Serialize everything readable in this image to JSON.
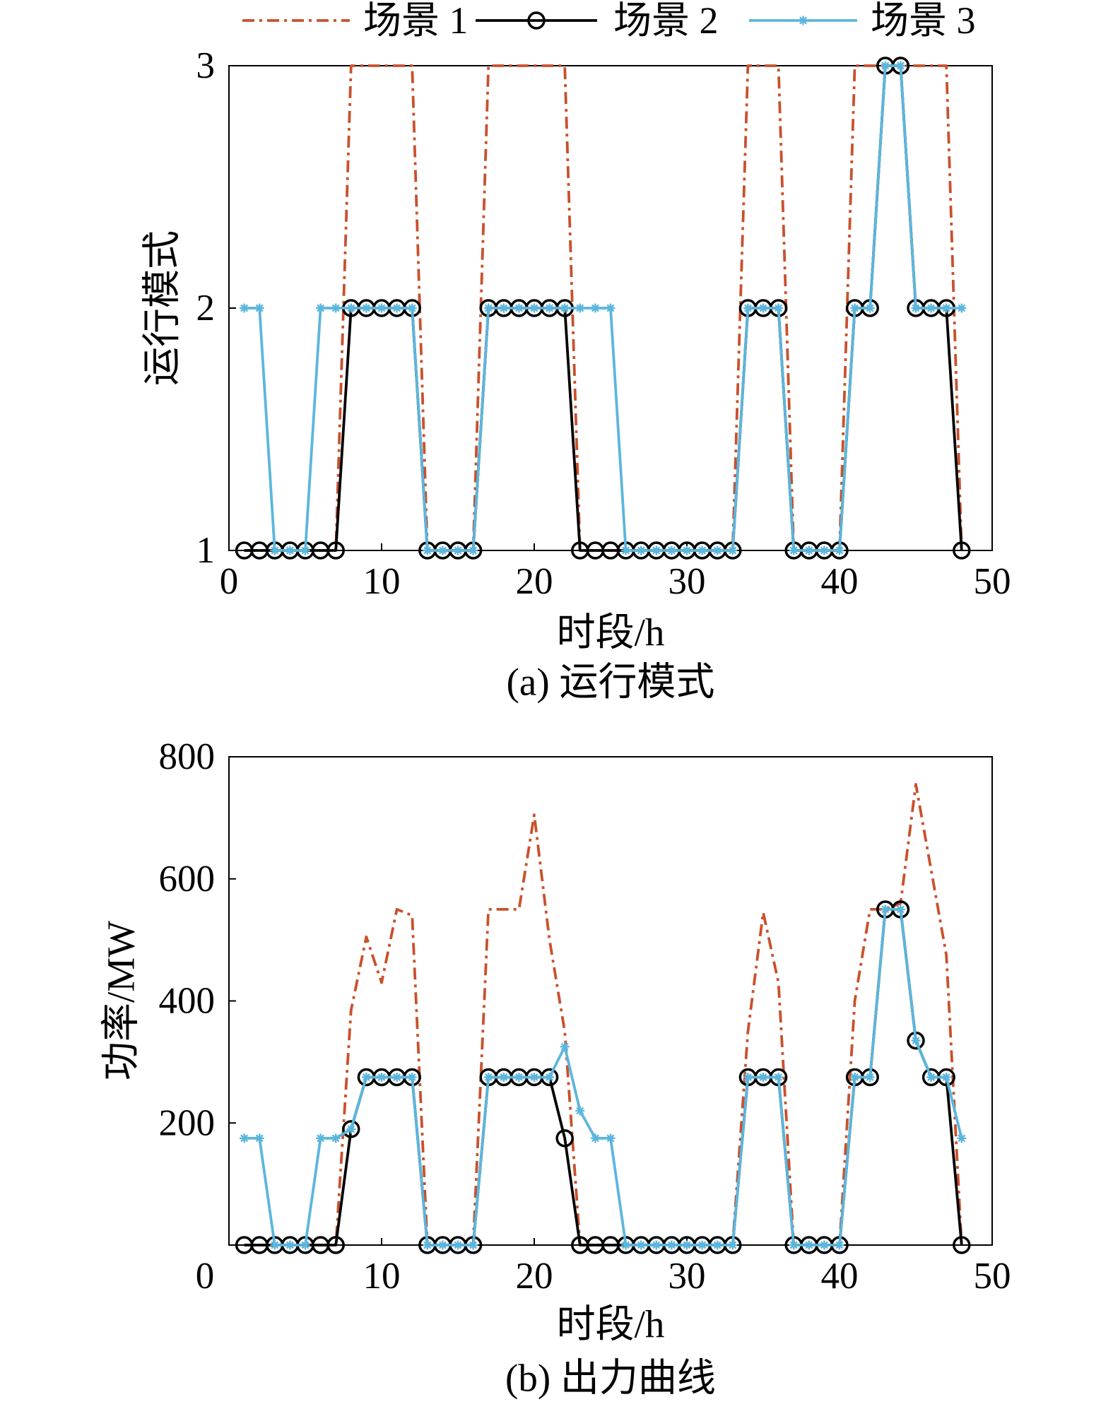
{
  "legend": {
    "position": "top",
    "items": [
      {
        "label": "场景 1",
        "color": "#c9512c",
        "line_style": "dash-dot"
      },
      {
        "label": "场景 2",
        "color": "#000000",
        "line_style": "solid",
        "marker": "circle"
      },
      {
        "label": "场景 3",
        "color": "#5cb6dc",
        "line_style": "solid",
        "marker": "asterisk"
      }
    ]
  },
  "chart_data": [
    {
      "type": "line",
      "caption": "(a) 运行模式",
      "xlabel": "时段/h",
      "ylabel": "运行模式",
      "xlim": [
        0,
        50
      ],
      "ylim": [
        1,
        3
      ],
      "xticks": [
        0,
        10,
        20,
        30,
        40,
        50
      ],
      "yticks": [
        1,
        2,
        3
      ],
      "grid": false,
      "x": [
        1,
        2,
        3,
        4,
        5,
        6,
        7,
        8,
        9,
        10,
        11,
        12,
        13,
        14,
        15,
        16,
        17,
        18,
        19,
        20,
        21,
        22,
        23,
        24,
        25,
        26,
        27,
        28,
        29,
        30,
        31,
        32,
        33,
        34,
        35,
        36,
        37,
        38,
        39,
        40,
        41,
        42,
        43,
        44,
        45,
        46,
        47,
        48
      ],
      "series": [
        {
          "name": "场景 1",
          "values": [
            1,
            1,
            1,
            1,
            1,
            1,
            1,
            3,
            3,
            3,
            3,
            3,
            1,
            1,
            1,
            1,
            3,
            3,
            3,
            3,
            3,
            3,
            1,
            1,
            1,
            1,
            1,
            1,
            1,
            1,
            1,
            1,
            1,
            3,
            3,
            3,
            1,
            1,
            1,
            1,
            3,
            3,
            3,
            3,
            3,
            3,
            3,
            1
          ]
        },
        {
          "name": "场景 2",
          "values": [
            1,
            1,
            1,
            1,
            1,
            1,
            1,
            2,
            2,
            2,
            2,
            2,
            1,
            1,
            1,
            1,
            2,
            2,
            2,
            2,
            2,
            2,
            1,
            1,
            1,
            1,
            1,
            1,
            1,
            1,
            1,
            1,
            1,
            2,
            2,
            2,
            1,
            1,
            1,
            1,
            2,
            2,
            3,
            3,
            2,
            2,
            2,
            1
          ]
        },
        {
          "name": "场景 3",
          "values": [
            2,
            2,
            1,
            1,
            1,
            2,
            2,
            2,
            2,
            2,
            2,
            2,
            1,
            1,
            1,
            1,
            2,
            2,
            2,
            2,
            2,
            2,
            2,
            2,
            2,
            1,
            1,
            1,
            1,
            1,
            1,
            1,
            1,
            2,
            2,
            2,
            1,
            1,
            1,
            1,
            2,
            2,
            3,
            3,
            2,
            2,
            2,
            2
          ]
        }
      ]
    },
    {
      "type": "line",
      "caption": "(b) 出力曲线",
      "xlabel": "时段/h",
      "ylabel": "功率/MW",
      "xlim": [
        0,
        50
      ],
      "ylim": [
        0,
        800
      ],
      "xticks": [
        0,
        10,
        20,
        30,
        40,
        50
      ],
      "yticks": [
        200,
        400,
        600,
        800
      ],
      "grid": false,
      "x": [
        1,
        2,
        3,
        4,
        5,
        6,
        7,
        8,
        9,
        10,
        11,
        12,
        13,
        14,
        15,
        16,
        17,
        18,
        19,
        20,
        21,
        22,
        23,
        24,
        25,
        26,
        27,
        28,
        29,
        30,
        31,
        32,
        33,
        34,
        35,
        36,
        37,
        38,
        39,
        40,
        41,
        42,
        43,
        44,
        45,
        46,
        47,
        48
      ],
      "series": [
        {
          "name": "场景 1",
          "values": [
            0,
            0,
            0,
            0,
            0,
            0,
            0,
            385,
            505,
            430,
            550,
            540,
            0,
            0,
            0,
            0,
            550,
            550,
            550,
            705,
            500,
            350,
            0,
            0,
            0,
            0,
            0,
            0,
            0,
            0,
            0,
            0,
            0,
            350,
            545,
            430,
            0,
            0,
            0,
            0,
            400,
            550,
            550,
            560,
            755,
            615,
            475,
            0
          ]
        },
        {
          "name": "场景 2",
          "values": [
            0,
            0,
            0,
            0,
            0,
            0,
            0,
            190,
            275,
            275,
            275,
            275,
            0,
            0,
            0,
            0,
            275,
            275,
            275,
            275,
            275,
            175,
            0,
            0,
            0,
            0,
            0,
            0,
            0,
            0,
            0,
            0,
            0,
            275,
            275,
            275,
            0,
            0,
            0,
            0,
            275,
            275,
            550,
            550,
            335,
            275,
            275,
            0
          ]
        },
        {
          "name": "场景 3",
          "values": [
            175,
            175,
            0,
            0,
            0,
            175,
            175,
            190,
            275,
            275,
            275,
            275,
            0,
            0,
            0,
            0,
            275,
            275,
            275,
            275,
            275,
            325,
            220,
            175,
            175,
            0,
            0,
            0,
            0,
            0,
            0,
            0,
            0,
            275,
            275,
            275,
            0,
            0,
            0,
            0,
            275,
            275,
            550,
            550,
            335,
            275,
            275,
            175
          ]
        }
      ]
    }
  ]
}
